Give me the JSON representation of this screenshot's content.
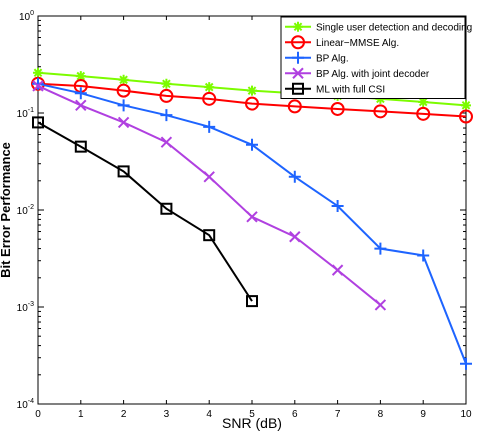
{
  "chart_data": {
    "type": "line",
    "title": "",
    "xlabel": "SNR (dB)",
    "ylabel": "Bit Error Performance",
    "xlim": [
      0,
      10
    ],
    "ylim": [
      0.0001,
      1
    ],
    "yscale": "log",
    "grid": false,
    "legend_position": "top-right",
    "x_ticks": [
      "0",
      "1",
      "2",
      "3",
      "4",
      "5",
      "6",
      "7",
      "8",
      "9",
      "10"
    ],
    "y_ticks": [
      {
        "base": "10",
        "exp": "-4"
      },
      {
        "base": "10",
        "exp": "-3"
      },
      {
        "base": "10",
        "exp": "-2"
      },
      {
        "base": "10",
        "exp": "-1"
      },
      {
        "base": "10",
        "exp": "0"
      }
    ],
    "series": [
      {
        "name": "Single user detection and decoding",
        "color": "#7cfc00",
        "marker": "asterisk",
        "x": [
          0,
          1,
          2,
          3,
          4,
          5,
          6,
          7,
          8,
          9,
          10
        ],
        "y": [
          0.26,
          0.24,
          0.22,
          0.2,
          0.185,
          0.17,
          0.16,
          0.15,
          0.14,
          0.13,
          0.12
        ]
      },
      {
        "name": "Linear−MMSE Alg.",
        "color": "#ff0000",
        "marker": "circle",
        "x": [
          0,
          1,
          2,
          3,
          4,
          5,
          6,
          7,
          8,
          9,
          10
        ],
        "y": [
          0.2,
          0.19,
          0.17,
          0.15,
          0.14,
          0.125,
          0.117,
          0.11,
          0.104,
          0.098,
          0.092
        ]
      },
      {
        "name": "BP Alg.",
        "color": "#1e64ff",
        "marker": "plus",
        "x": [
          0,
          1,
          2,
          3,
          4,
          5,
          6,
          7,
          8,
          9,
          10
        ],
        "y": [
          0.2,
          0.16,
          0.12,
          0.095,
          0.072,
          0.047,
          0.022,
          0.011,
          0.004,
          0.0034,
          0.00026
        ]
      },
      {
        "name": "BP Alg. with joint decoder",
        "color": "#b040e0",
        "marker": "cross",
        "x": [
          0,
          1,
          2,
          3,
          4,
          5,
          6,
          7,
          8
        ],
        "y": [
          0.19,
          0.12,
          0.08,
          0.05,
          0.022,
          0.0085,
          0.0053,
          0.0024,
          0.00105
        ]
      },
      {
        "name": "ML with full CSI",
        "color": "#000000",
        "marker": "square",
        "x": [
          0,
          1,
          2,
          3,
          4,
          5
        ],
        "y": [
          0.08,
          0.045,
          0.025,
          0.0103,
          0.0055,
          0.00115
        ]
      }
    ]
  }
}
